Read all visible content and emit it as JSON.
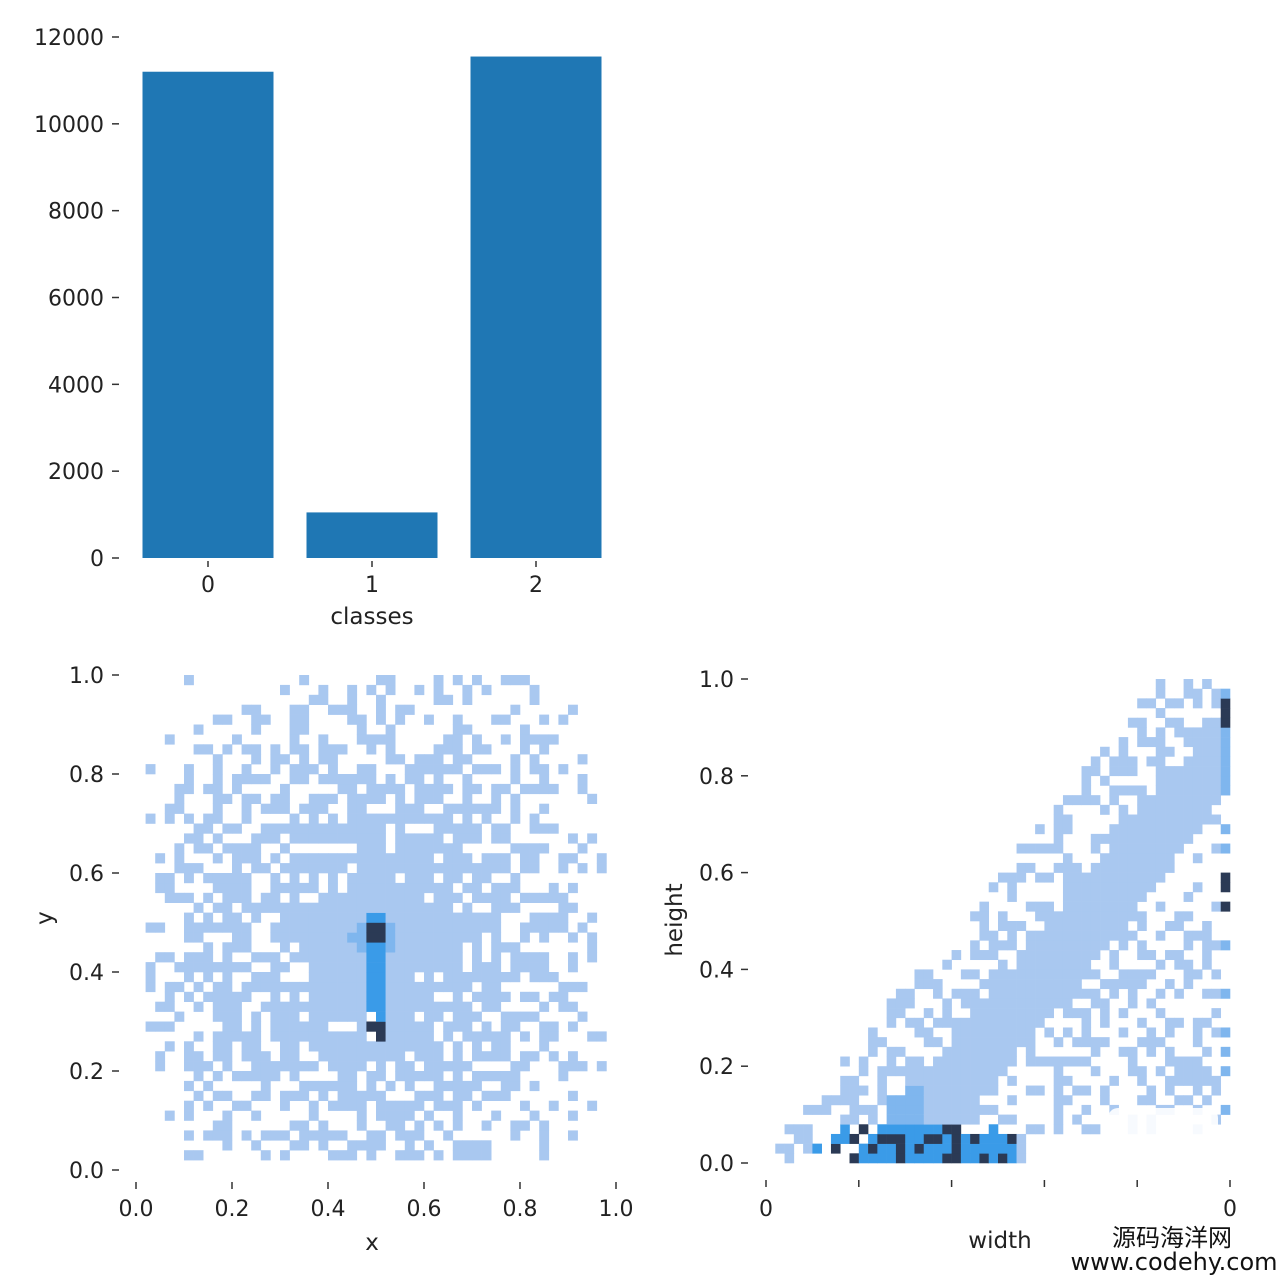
{
  "chart_data": [
    {
      "type": "bar",
      "categories": [
        "0",
        "1",
        "2"
      ],
      "values": [
        11200,
        1050,
        11550
      ],
      "xlabel": "classes",
      "ylabel": "",
      "ylim": [
        0,
        12000
      ],
      "yticks": [
        "0",
        "2000",
        "4000",
        "6000",
        "8000",
        "10000",
        "12000"
      ],
      "color": "#1f77b4",
      "grid": false
    },
    {
      "type": "heatmap",
      "xlabel": "x",
      "ylabel": "y",
      "xlim": [
        0,
        1
      ],
      "ylim": [
        0,
        1
      ],
      "xticks": [
        "0.0",
        "0.2",
        "0.4",
        "0.6",
        "0.8",
        "1.0"
      ],
      "yticks": [
        "0.0",
        "0.2",
        "0.4",
        "0.6",
        "0.8",
        "1.0"
      ],
      "colors": {
        "low": "#a9c8f0",
        "mid": "#3a9be8",
        "high": "#2b3a55"
      },
      "hotspots": [
        {
          "x": 0.5,
          "y": 0.47,
          "level": "high"
        },
        {
          "x": 0.5,
          "y": 0.28,
          "level": "high"
        }
      ]
    },
    {
      "type": "heatmap",
      "xlabel": "width",
      "ylabel": "height",
      "xlim": [
        0,
        1
      ],
      "ylim": [
        0,
        1
      ],
      "xticks": [
        "0",
        "",
        "",
        "",
        "",
        "0"
      ],
      "yticks": [
        "0.0",
        "0.2",
        "0.4",
        "0.6",
        "0.8",
        "1.0"
      ],
      "colors": {
        "low": "#a9c8f0",
        "mid": "#3a9be8",
        "high": "#2b3a55"
      }
    }
  ],
  "watermark": {
    "line1": "源码海洋网",
    "line2": "www.codehy.com"
  }
}
